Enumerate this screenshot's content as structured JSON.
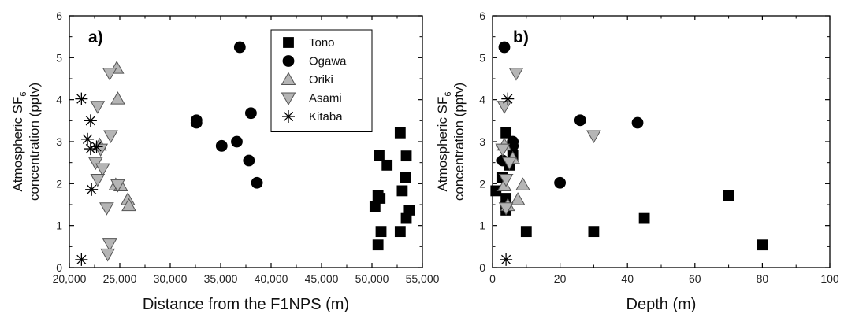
{
  "chart_data": [
    {
      "type": "scatter",
      "panel_label": "a)",
      "xlabel": "Distance from the F1NPS  (m)",
      "ylabel_line1": "Atmospheric SF",
      "ylabel_sub": "6",
      "ylabel_line2": "concentration (pptv)",
      "xlim": [
        20000,
        55000
      ],
      "ylim": [
        0,
        6
      ],
      "xticks": [
        20000,
        25000,
        30000,
        35000,
        40000,
        45000,
        50000,
        55000
      ],
      "xtick_labels": [
        "20,000",
        "25,000",
        "30,000",
        "35,000",
        "40,000",
        "45,000",
        "50,000",
        "55,000"
      ],
      "yticks": [
        0,
        1,
        2,
        3,
        4,
        5,
        6
      ],
      "ytick_labels": [
        "0",
        "1",
        "2",
        "3",
        "4",
        "5",
        "6"
      ],
      "legend_position": "top-right",
      "series": [
        {
          "name": "Tono",
          "marker": "square",
          "fill": "#000000",
          "points": [
            [
              50700,
              2.67
            ],
            [
              51500,
              2.44
            ],
            [
              50300,
              1.45
            ],
            [
              50600,
              1.71
            ],
            [
              50800,
              1.65
            ],
            [
              50900,
              0.86
            ],
            [
              50600,
              0.54
            ],
            [
              52800,
              3.21
            ],
            [
              53400,
              2.66
            ],
            [
              53300,
              2.15
            ],
            [
              53000,
              1.83
            ],
            [
              53700,
              1.37
            ],
            [
              53400,
              1.17
            ],
            [
              52800,
              0.86
            ]
          ]
        },
        {
          "name": "Ogawa",
          "marker": "circle",
          "fill": "#000000",
          "points": [
            [
              36900,
              5.25
            ],
            [
              32600,
              3.51
            ],
            [
              32600,
              3.45
            ],
            [
              35100,
              2.9
            ],
            [
              36600,
              3.0
            ],
            [
              38000,
              3.68
            ],
            [
              37800,
              2.55
            ],
            [
              38600,
              2.02
            ]
          ]
        },
        {
          "name": "Oriki",
          "marker": "triangle-up",
          "fill": "#b5b5b5",
          "points": [
            [
              24700,
              4.75
            ],
            [
              24800,
              4.02
            ],
            [
              23000,
              2.92
            ],
            [
              24600,
              1.97
            ],
            [
              25100,
              1.95
            ],
            [
              25800,
              1.62
            ],
            [
              25900,
              1.48
            ]
          ]
        },
        {
          "name": "Asami",
          "marker": "triangle-down",
          "fill": "#b5b5b5",
          "points": [
            [
              24000,
              4.63
            ],
            [
              22800,
              3.84
            ],
            [
              24100,
              3.14
            ],
            [
              23100,
              2.82
            ],
            [
              22600,
              2.5
            ],
            [
              23300,
              2.35
            ],
            [
              22800,
              2.1
            ],
            [
              24800,
              1.97
            ],
            [
              23700,
              1.42
            ],
            [
              24000,
              0.56
            ],
            [
              23800,
              0.32
            ]
          ]
        },
        {
          "name": "Kitaba",
          "marker": "asterisk",
          "fill": "#000000",
          "points": [
            [
              21200,
              4.02
            ],
            [
              22100,
              3.5
            ],
            [
              21800,
              3.06
            ],
            [
              22700,
              2.88
            ],
            [
              22100,
              2.83
            ],
            [
              22200,
              1.86
            ],
            [
              21200,
              0.19
            ]
          ]
        }
      ]
    },
    {
      "type": "scatter",
      "panel_label": "b)",
      "xlabel": "Depth (m)",
      "ylabel_line1": "Atmospheric SF",
      "ylabel_sub": "6",
      "ylabel_line2": "concentration (pptv)",
      "xlim": [
        0,
        100
      ],
      "ylim": [
        0,
        6
      ],
      "xticks": [
        0,
        20,
        40,
        60,
        80,
        100
      ],
      "xtick_labels": [
        "0",
        "20",
        "40",
        "60",
        "80",
        "100"
      ],
      "yticks": [
        0,
        1,
        2,
        3,
        4,
        5,
        6
      ],
      "ytick_labels": [
        "0",
        "1",
        "2",
        "3",
        "4",
        "5",
        "6"
      ],
      "series": [
        {
          "name": "Tono",
          "marker": "square",
          "fill": "#000000",
          "points": [
            [
              4,
              3.21
            ],
            [
              6,
              2.67
            ],
            [
              5,
              2.44
            ],
            [
              3,
              2.15
            ],
            [
              1,
              1.83
            ],
            [
              4,
              1.65
            ],
            [
              4,
              1.45
            ],
            [
              4,
              1.37
            ],
            [
              10,
              0.86
            ],
            [
              30,
              0.86
            ],
            [
              45,
              1.17
            ],
            [
              70,
              1.71
            ],
            [
              80,
              0.54
            ]
          ]
        },
        {
          "name": "Ogawa",
          "marker": "circle",
          "fill": "#000000",
          "points": [
            [
              3.5,
              5.25
            ],
            [
              26,
              3.51
            ],
            [
              43,
              3.45
            ],
            [
              6,
              3.0
            ],
            [
              6,
              2.9
            ],
            [
              3,
              2.55
            ],
            [
              20,
              2.02
            ]
          ]
        },
        {
          "name": "Oriki",
          "marker": "triangle-up",
          "fill": "#b5b5b5",
          "points": [
            [
              3.5,
              2.92
            ],
            [
              6,
              2.6
            ],
            [
              9,
              1.97
            ],
            [
              7.5,
              1.62
            ],
            [
              3.5,
              1.95
            ],
            [
              4.5,
              1.48
            ]
          ]
        },
        {
          "name": "Asami",
          "marker": "triangle-down",
          "fill": "#b5b5b5",
          "points": [
            [
              7,
              4.63
            ],
            [
              3.5,
              3.84
            ],
            [
              30,
              3.14
            ],
            [
              3,
              2.82
            ],
            [
              5,
              2.5
            ],
            [
              4,
              2.1
            ],
            [
              4,
              1.42
            ]
          ]
        },
        {
          "name": "Kitaba",
          "marker": "asterisk",
          "fill": "#000000",
          "points": [
            [
              4.5,
              4.02
            ],
            [
              4,
              0.19
            ]
          ]
        }
      ]
    }
  ]
}
